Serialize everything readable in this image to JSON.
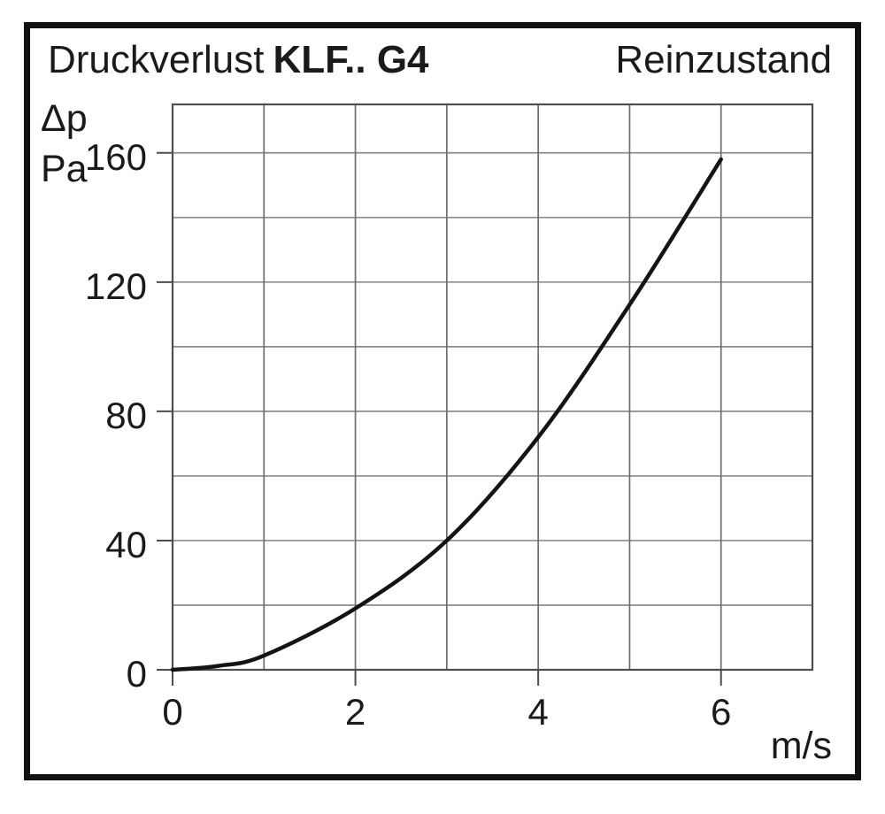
{
  "header": {
    "title_prefix": "Druckverlust",
    "title_model": "KLF.. G4",
    "title_right": "Reinzustand"
  },
  "chart_data": {
    "type": "line",
    "title": "Druckverlust KLF.. G4 Reinzustand",
    "xlabel": "m/s",
    "ylabel_line1": "Δp",
    "ylabel_line2": "Pa",
    "xlim": [
      0,
      7
    ],
    "ylim": [
      0,
      175
    ],
    "x_grid_step": 1,
    "y_grid_step": 20,
    "y_grid_max": 160,
    "x_tick_labels": [
      "0",
      "2",
      "4",
      "6"
    ],
    "x_tick_values": [
      0,
      2,
      4,
      6
    ],
    "y_tick_labels": [
      "0",
      "40",
      "80",
      "120",
      "160"
    ],
    "y_tick_values": [
      0,
      40,
      80,
      120,
      160
    ],
    "grid": true,
    "legend": "none",
    "series": [
      {
        "name": "KLF.. G4 Reinzustand",
        "x": [
          0,
          0.5,
          1,
          2,
          3,
          4,
          5,
          6
        ],
        "y": [
          0,
          1.2,
          4.4,
          19,
          40,
          72,
          113,
          158
        ]
      }
    ],
    "colors": {
      "curve": "#141414",
      "grid_h": "#8c8c8c",
      "grid_v": "#6e6e6e",
      "axis": "#4d4d4d",
      "frame": "#111111",
      "text": "#1a1a1a"
    }
  }
}
